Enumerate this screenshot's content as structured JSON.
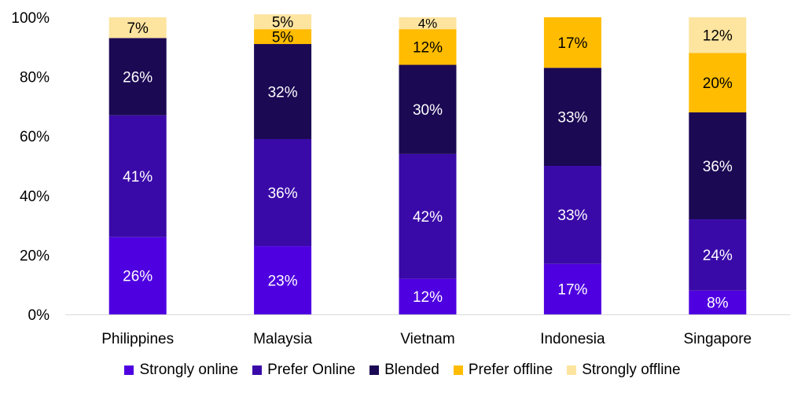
{
  "chart_data": {
    "type": "bar",
    "stacked": "percent",
    "categories": [
      "Philippines",
      "Malaysia",
      "Vietnam",
      "Indonesia",
      "Singapore"
    ],
    "series": [
      {
        "name": "Strongly online",
        "color": "#4f00e0",
        "values": [
          26,
          23,
          12,
          17,
          8
        ],
        "labels": [
          "26%",
          "23%",
          "12%",
          "17%",
          "8%"
        ]
      },
      {
        "name": "Prefer Online",
        "color": "#3a0aa8",
        "values": [
          41,
          36,
          42,
          33,
          24
        ],
        "labels": [
          "41%",
          "36%",
          "42%",
          "33%",
          "24%"
        ]
      },
      {
        "name": "Blended",
        "color": "#1b0954",
        "values": [
          26,
          32,
          30,
          33,
          36
        ],
        "labels": [
          "26%",
          "32%",
          "30%",
          "33%",
          "36%"
        ]
      },
      {
        "name": "Prefer offline",
        "color": "#ffbc00",
        "values": [
          0,
          5,
          12,
          17,
          20
        ],
        "labels": [
          "",
          "5%",
          "12%",
          "17%",
          "20%"
        ]
      },
      {
        "name": "Strongly offline",
        "color": "#fde49f",
        "values": [
          7,
          5,
          4,
          0,
          12
        ],
        "labels": [
          "7%",
          "5%",
          "4%",
          "",
          "12%"
        ]
      }
    ],
    "ylim": [
      0,
      100
    ],
    "yticks": [
      "0%",
      "20%",
      "40%",
      "60%",
      "80%",
      "100%"
    ],
    "xlabel": "",
    "ylabel": "",
    "grid": false,
    "legend_position": "bottom"
  }
}
